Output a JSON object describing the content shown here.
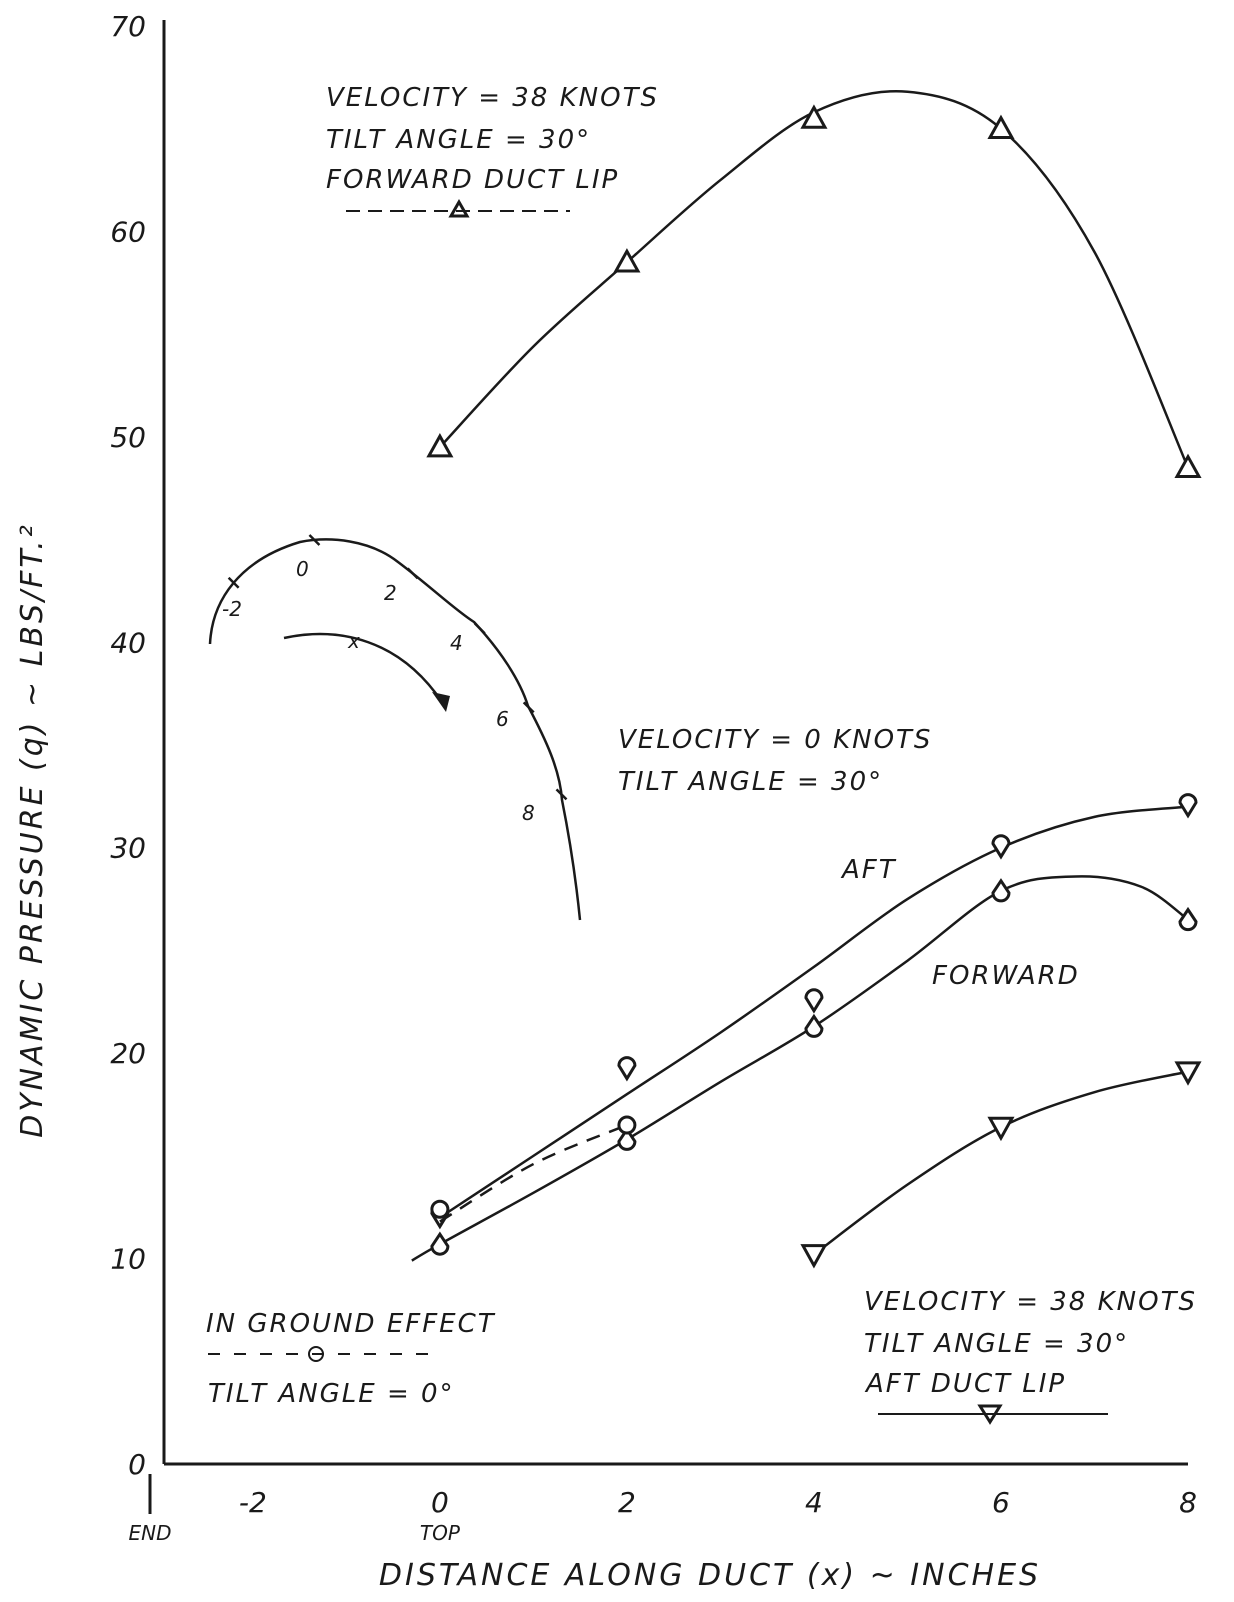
{
  "chart_data": {
    "type": "line",
    "xlabel": "DISTANCE ALONG DUCT (x) ~ INCHES",
    "ylabel": "DYNAMIC PRESSURE (q) ~ LBS/FT.²",
    "xlim": [
      -3.1,
      8
    ],
    "ylim": [
      0,
      70
    ],
    "x_ticks": [
      {
        "value": -2,
        "label": "-2"
      },
      {
        "value": 0,
        "label": "0"
      },
      {
        "value": 2,
        "label": "2"
      },
      {
        "value": 4,
        "label": "4"
      },
      {
        "value": 6,
        "label": "6"
      },
      {
        "value": 8,
        "label": "8"
      }
    ],
    "y_ticks": [
      {
        "value": 0,
        "label": "0"
      },
      {
        "value": 10,
        "label": "10"
      },
      {
        "value": 20,
        "label": "20"
      },
      {
        "value": 30,
        "label": "30"
      },
      {
        "value": 40,
        "label": "40"
      },
      {
        "value": 50,
        "label": "50"
      },
      {
        "value": 60,
        "label": "60"
      },
      {
        "value": 70,
        "label": "70"
      }
    ],
    "x_tick_sublabels": [
      {
        "x": -3.1,
        "label": "END"
      },
      {
        "x": 0,
        "label": "TOP"
      }
    ],
    "grid": false,
    "series": [
      {
        "marker": "triangle-up",
        "line": "solid",
        "x": [
          0,
          2,
          4,
          6,
          8
        ],
        "y": [
          49.5,
          58.5,
          65.5,
          65,
          48.5
        ],
        "curve_x": [
          0,
          1,
          2,
          3,
          4,
          5,
          6,
          7,
          8
        ],
        "curve_y": [
          49.5,
          54.4,
          58.5,
          62.5,
          65.8,
          66.8,
          65,
          59,
          48.5
        ]
      },
      {
        "marker": "triangle-down",
        "line": "solid",
        "x": [
          4,
          6,
          8
        ],
        "y": [
          10.2,
          16.4,
          19.1
        ],
        "curve_x": [
          4,
          5,
          6,
          7,
          8
        ],
        "curve_y": [
          10.2,
          13.6,
          16.4,
          18.1,
          19.1
        ]
      },
      {
        "marker": "aft-symbol",
        "line": "solid",
        "x": [
          0,
          2,
          4,
          6,
          8
        ],
        "y": [
          12,
          19.2,
          22.5,
          30,
          32
        ],
        "curve_x": [
          0,
          1,
          2,
          3,
          4,
          5,
          6,
          7,
          8
        ],
        "curve_y": [
          12,
          15,
          18,
          21,
          24.2,
          27.5,
          30,
          31.5,
          32
        ]
      },
      {
        "marker": "forward-symbol",
        "line": "solid",
        "x": [
          0,
          2,
          4,
          6,
          8
        ],
        "y": [
          10.7,
          15.8,
          21.3,
          27.9,
          26.5
        ],
        "curve_x": [
          -0.3,
          0,
          1,
          2,
          3,
          4,
          5,
          6,
          6.8,
          7.5,
          8
        ],
        "curve_y": [
          9.9,
          10.7,
          13.2,
          15.8,
          18.6,
          21.3,
          24.5,
          27.9,
          28.6,
          28.1,
          26.5
        ]
      },
      {
        "marker": "circle",
        "line": "dashed",
        "x": [
          0,
          2
        ],
        "y": [
          12.4,
          16.5
        ],
        "curve_x": [
          0,
          1,
          2
        ],
        "curve_y": [
          11.8,
          14.6,
          16.5
        ]
      }
    ],
    "labels": {
      "top_legend": [
        "VELOCITY = 38 KNOTS",
        "TILT ANGLE = 30°",
        "FORWARD DUCT LIP"
      ],
      "mid_legend": [
        "VELOCITY = 0 KNOTS",
        "TILT ANGLE = 30°"
      ],
      "aft": "AFT",
      "forward": "FORWARD",
      "bottom_left": [
        "IN GROUND EFFECT",
        "TILT ANGLE = 0°"
      ],
      "bottom_right": [
        "VELOCITY = 38 KNOTS",
        "TILT ANGLE = 30°",
        "AFT DUCT LIP"
      ]
    },
    "inset": {
      "marks": [
        "-2",
        "0",
        "2",
        "4",
        "6",
        "8"
      ],
      "arrow_label": "x"
    }
  }
}
